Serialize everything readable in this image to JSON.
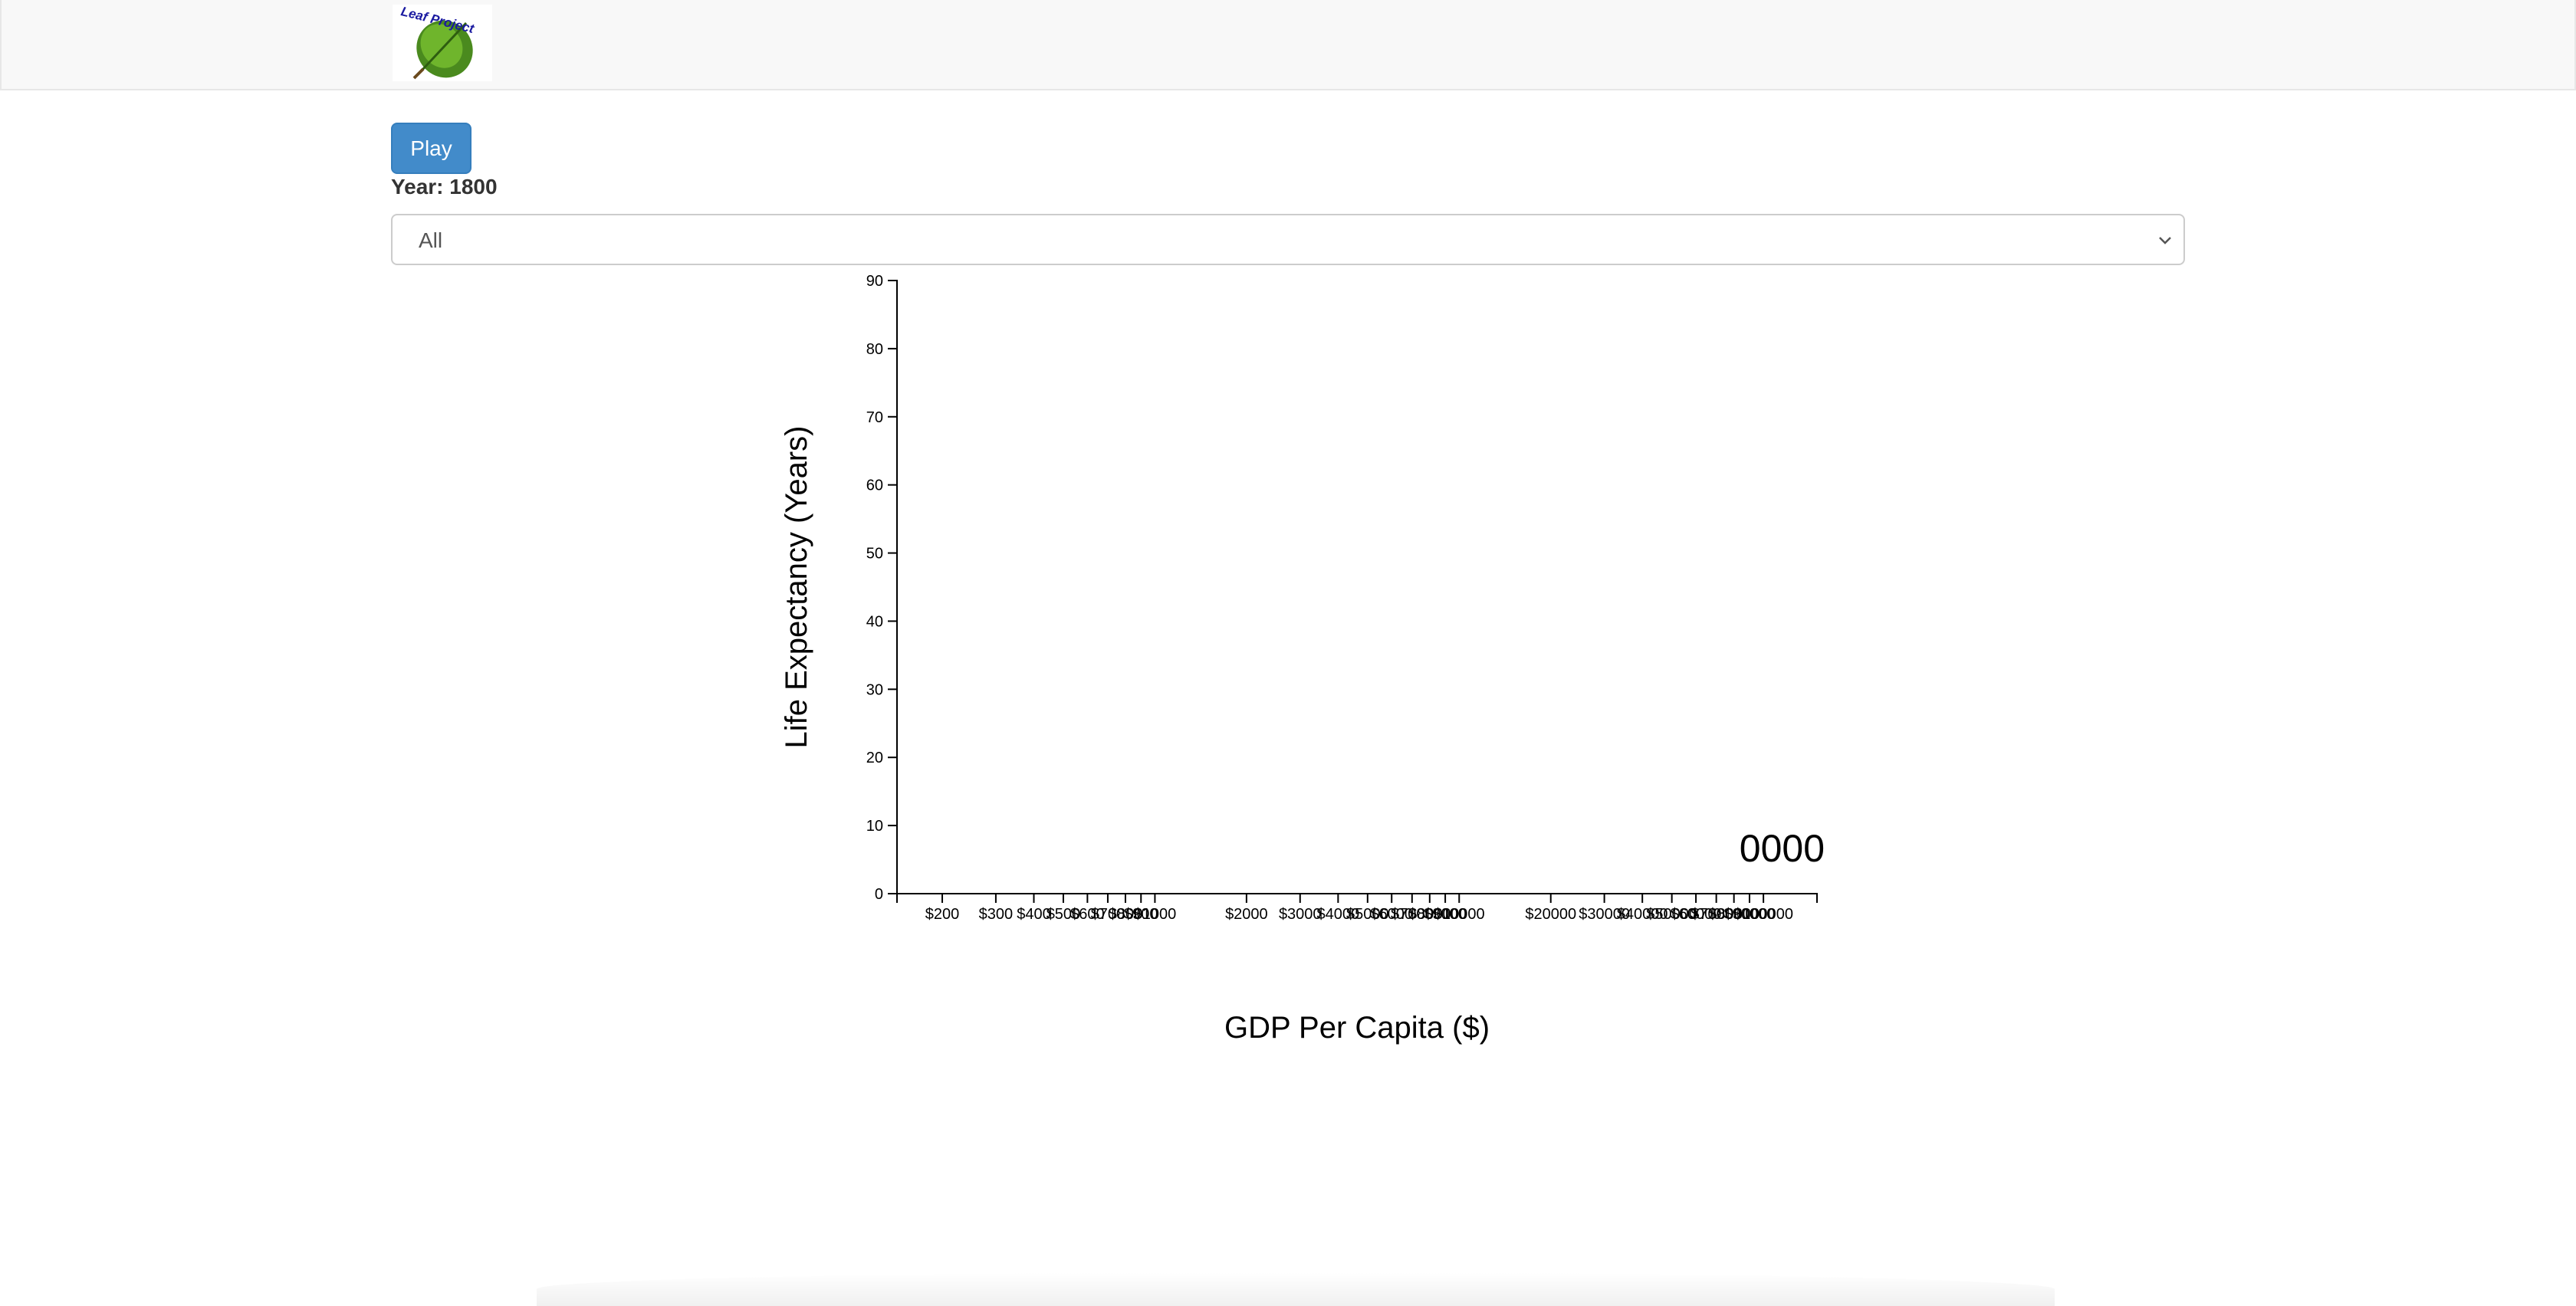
{
  "navbar": {
    "logo_text": "Leaf Project"
  },
  "controls": {
    "play_label": "Play",
    "year_prefix": "Year:",
    "year_value": "1800",
    "continent_selected": "All"
  },
  "colors": {
    "play_button": "#428bca",
    "navbar_bg": "#f8f8f8"
  },
  "chart_data": {
    "type": "scatter",
    "xlabel": "GDP Per Capita ($)",
    "ylabel": "Life Expectancy (Years)",
    "x_scale": "log",
    "xlim": [
      142,
      150000
    ],
    "ylim": [
      0,
      90
    ],
    "y_ticks": [
      0,
      10,
      20,
      30,
      40,
      50,
      60,
      70,
      80,
      90
    ],
    "x_ticks": [
      200,
      300,
      400,
      500,
      600,
      700,
      800,
      900,
      1000,
      2000,
      3000,
      4000,
      5000,
      6000,
      7000,
      8000,
      9000,
      10000,
      20000,
      30000,
      40000,
      50000,
      60000,
      70000,
      80000,
      90000,
      100000
    ],
    "x_tick_labels": [
      "$200",
      "$300",
      "$400",
      "$500",
      "$600",
      "$700",
      "$800",
      "$900",
      "$1000",
      "$2000",
      "$3000",
      "$4000",
      "$5000",
      "$6000",
      "$7000",
      "$8000",
      "$9000",
      "$10000",
      "$20000",
      "$30000",
      "$40000",
      "$50000",
      "$60000",
      "$70000",
      "$80000",
      "$90000",
      "$100000"
    ],
    "points": [],
    "overlay_year_text": "0000",
    "grid": false
  }
}
